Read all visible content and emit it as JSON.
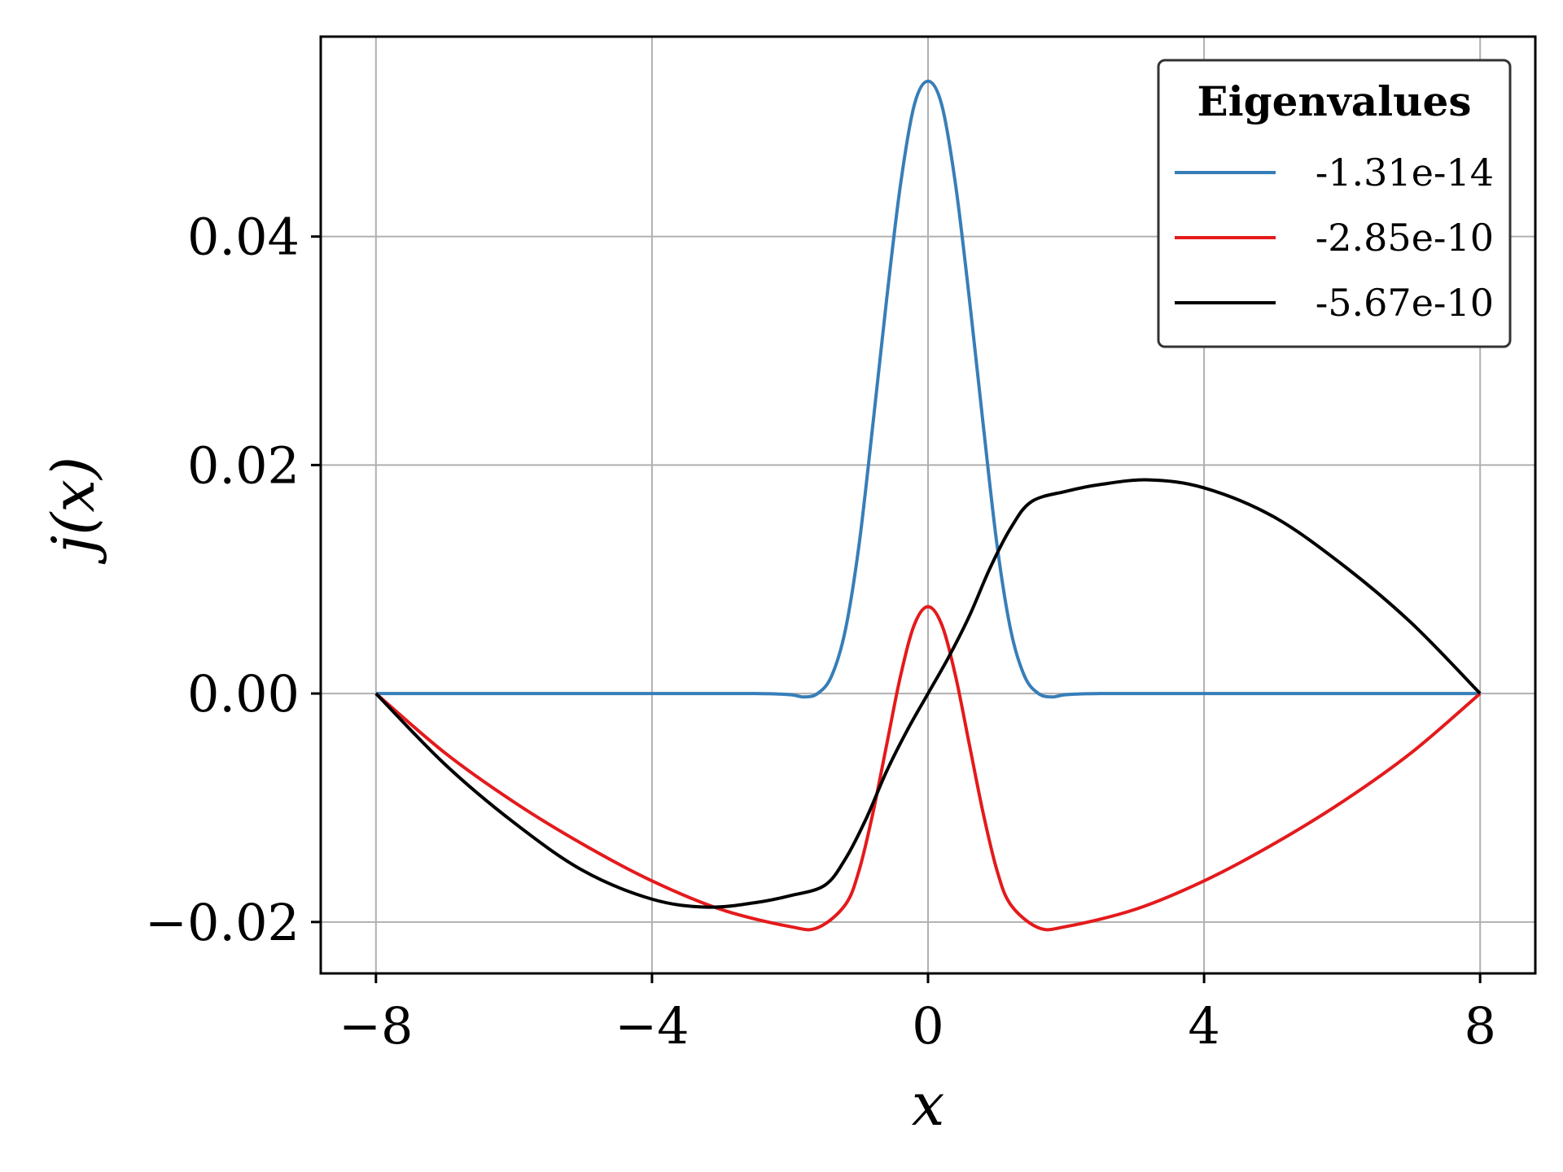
{
  "chart_data": {
    "type": "line",
    "title": "",
    "xlabel": "x",
    "ylabel": "j(x)",
    "xlim": [
      -8.8,
      8.8
    ],
    "ylim": [
      -0.0245,
      0.0575
    ],
    "xticks": [
      -8,
      -4,
      0,
      4,
      8
    ],
    "xtick_labels": [
      "−8",
      "−4",
      "0",
      "4",
      "8"
    ],
    "yticks": [
      -0.02,
      0.0,
      0.02,
      0.04
    ],
    "ytick_labels": [
      "−0.02",
      "0.00",
      "0.02",
      "0.04"
    ],
    "grid": true,
    "legend": {
      "title": "Eigenvalues",
      "placement": "top-right"
    },
    "series": [
      {
        "name": "-1.31e-14",
        "color": "#377eb8",
        "x": [
          -8,
          -6,
          -4,
          -2.5,
          -2,
          -1.8,
          -1.6,
          -1.4,
          -1.2,
          -1.0,
          -0.8,
          -0.6,
          -0.4,
          -0.2,
          0,
          0.2,
          0.4,
          0.6,
          0.8,
          1.0,
          1.2,
          1.4,
          1.6,
          1.8,
          2.0,
          2.5,
          4,
          6,
          8
        ],
        "y": [
          0,
          0,
          0,
          0,
          -0.0001,
          -0.0003,
          0.0,
          0.0015,
          0.0055,
          0.013,
          0.0235,
          0.0345,
          0.0445,
          0.0515,
          0.0536,
          0.0515,
          0.0445,
          0.0345,
          0.0235,
          0.013,
          0.0055,
          0.0015,
          0.0,
          -0.0003,
          -0.0001,
          0,
          0,
          0,
          0
        ]
      },
      {
        "name": "-2.85e-10",
        "color": "#e41a1c",
        "x": [
          -8,
          -7,
          -6,
          -5,
          -4,
          -3,
          -2,
          -1.6,
          -1.2,
          -1.0,
          -0.8,
          -0.6,
          -0.4,
          -0.2,
          0,
          0.2,
          0.4,
          0.6,
          0.8,
          1.0,
          1.2,
          1.6,
          2,
          3,
          4,
          5,
          6,
          7,
          8
        ],
        "y": [
          0,
          -0.0052,
          -0.0095,
          -0.0132,
          -0.0164,
          -0.0189,
          -0.0204,
          -0.0205,
          -0.0185,
          -0.0155,
          -0.0105,
          -0.0045,
          0.0015,
          0.006,
          0.0076,
          0.006,
          0.0015,
          -0.0045,
          -0.0105,
          -0.0155,
          -0.0185,
          -0.0205,
          -0.0204,
          -0.0189,
          -0.0164,
          -0.0132,
          -0.0095,
          -0.0052,
          0
        ]
      },
      {
        "name": "-5.67e-10",
        "color": "#000000",
        "x": [
          -8,
          -7,
          -6,
          -5,
          -4,
          -3.2,
          -2.5,
          -2,
          -1.5,
          -1.2,
          -0.9,
          -0.6,
          -0.3,
          0,
          0.3,
          0.6,
          0.9,
          1.2,
          1.5,
          2,
          2.5,
          3.2,
          4,
          5,
          6,
          7,
          8
        ],
        "y": [
          0,
          -0.0062,
          -0.0113,
          -0.0155,
          -0.018,
          -0.0187,
          -0.0183,
          -0.0177,
          -0.0168,
          -0.0145,
          -0.011,
          -0.0068,
          -0.0032,
          0,
          0.0032,
          0.0068,
          0.011,
          0.0145,
          0.0168,
          0.0177,
          0.0183,
          0.0187,
          0.018,
          0.0155,
          0.0113,
          0.0062,
          0
        ]
      }
    ]
  }
}
